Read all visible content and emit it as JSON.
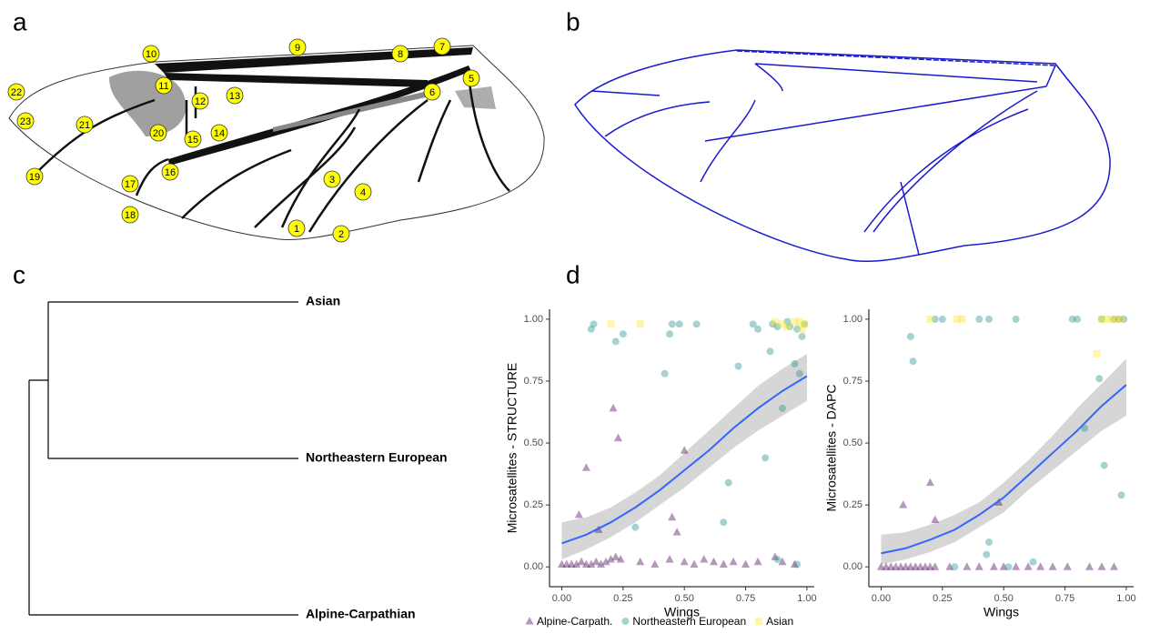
{
  "panel_labels": [
    "a",
    "b",
    "c",
    "d"
  ],
  "landmarks": [
    "1",
    "2",
    "3",
    "4",
    "5",
    "6",
    "7",
    "8",
    "9",
    "10",
    "11",
    "12",
    "13",
    "14",
    "15",
    "16",
    "17",
    "18",
    "19",
    "20",
    "21",
    "22",
    "23"
  ],
  "dendrogram": {
    "leaves": [
      "Asian",
      "Northeastern European",
      "Alpine-Carpathian"
    ]
  },
  "chart_data": [
    {
      "type": "scatter",
      "x_label": "Wings",
      "y_label": "Microsatellites - STRUCTURE",
      "xlim": [
        -0.05,
        1.03
      ],
      "ylim": [
        -0.08,
        1.04
      ],
      "xticks": [
        {
          "value": 0,
          "label": "0.00"
        },
        {
          "value": 0.25,
          "label": "0.25"
        },
        {
          "value": 0.5,
          "label": "0.50"
        },
        {
          "value": 0.75,
          "label": "0.75"
        },
        {
          "value": 1,
          "label": "1.00"
        }
      ],
      "yticks": [
        {
          "value": 0,
          "label": "0.00"
        },
        {
          "value": 0.25,
          "label": "0.25"
        },
        {
          "value": 0.5,
          "label": "0.50"
        },
        {
          "value": 0.75,
          "label": "0.75"
        },
        {
          "value": 1,
          "label": "1.00"
        }
      ],
      "series": [
        {
          "name": "Alpine-Carpath.",
          "color": "#440154",
          "marker": "triangle",
          "x": [
            0,
            0.02,
            0.04,
            0.06,
            0.08,
            0.1,
            0.12,
            0.14,
            0.16,
            0.18,
            0.2,
            0.22,
            0.24,
            0.07,
            0.1,
            0.15,
            0.21,
            0.23,
            0.5,
            0.45,
            0.47,
            0.32,
            0.38,
            0.44,
            0.5,
            0.54,
            0.58,
            0.62,
            0.66,
            0.7,
            0.75,
            0.8,
            0.87,
            0.9,
            0.95
          ],
          "values": [
            0.01,
            0.01,
            0.01,
            0.01,
            0.02,
            0.01,
            0.01,
            0.02,
            0.01,
            0.02,
            0.03,
            0.04,
            0.03,
            0.21,
            0.4,
            0.15,
            0.64,
            0.52,
            0.47,
            0.2,
            0.14,
            0.02,
            0.01,
            0.03,
            0.02,
            0.01,
            0.03,
            0.02,
            0.01,
            0.02,
            0.01,
            0.02,
            0.04,
            0.02,
            0.01
          ]
        },
        {
          "name": "Northeastern European",
          "color": "#21908c",
          "marker": "circle",
          "x": [
            0.12,
            0.13,
            0.22,
            0.25,
            0.3,
            0.42,
            0.44,
            0.45,
            0.48,
            0.55,
            0.66,
            0.68,
            0.72,
            0.78,
            0.8,
            0.83,
            0.85,
            0.86,
            0.88,
            0.9,
            0.92,
            0.93,
            0.95,
            0.96,
            0.97,
            0.98,
            0.99,
            0.88,
            0.96
          ],
          "values": [
            0.96,
            0.98,
            0.91,
            0.94,
            0.16,
            0.78,
            0.94,
            0.98,
            0.98,
            0.98,
            0.18,
            0.34,
            0.81,
            0.98,
            0.96,
            0.44,
            0.87,
            0.98,
            0.97,
            0.64,
            0.99,
            0.97,
            0.82,
            0.96,
            0.78,
            0.93,
            0.98,
            0.03,
            0.01
          ]
        },
        {
          "name": "Asian",
          "color": "#fde725",
          "marker": "square",
          "x": [
            0.2,
            0.32,
            0.87,
            0.9,
            0.92,
            0.95,
            0.97,
            0.99,
            0.98
          ],
          "values": [
            0.98,
            0.98,
            0.99,
            0.98,
            0.97,
            0.99,
            0.99,
            0.98,
            0.96
          ]
        }
      ],
      "fit": {
        "color": "#3366ff",
        "band_color": "#999999",
        "x": [
          0,
          0.1,
          0.2,
          0.3,
          0.4,
          0.5,
          0.6,
          0.7,
          0.8,
          0.9,
          1
        ],
        "values": [
          0.095,
          0.13,
          0.18,
          0.24,
          0.31,
          0.39,
          0.47,
          0.56,
          0.64,
          0.71,
          0.77
        ],
        "lower": [
          0.03,
          0.07,
          0.12,
          0.18,
          0.25,
          0.32,
          0.4,
          0.48,
          0.55,
          0.61,
          0.67
        ],
        "upper": [
          0.18,
          0.2,
          0.24,
          0.3,
          0.37,
          0.46,
          0.55,
          0.64,
          0.73,
          0.8,
          0.86
        ]
      }
    },
    {
      "type": "scatter",
      "x_label": "Wings",
      "y_label": "Microsatellites - DAPC",
      "xlim": [
        -0.05,
        1.03
      ],
      "ylim": [
        -0.08,
        1.04
      ],
      "xticks": [
        {
          "value": 0,
          "label": "0.00"
        },
        {
          "value": 0.25,
          "label": "0.25"
        },
        {
          "value": 0.5,
          "label": "0.50"
        },
        {
          "value": 0.75,
          "label": "0.75"
        },
        {
          "value": 1,
          "label": "1.00"
        }
      ],
      "yticks": [
        {
          "value": 0,
          "label": "0.00"
        },
        {
          "value": 0.25,
          "label": "0.25"
        },
        {
          "value": 0.5,
          "label": "0.50"
        },
        {
          "value": 0.75,
          "label": "0.75"
        },
        {
          "value": 1,
          "label": "1.00"
        }
      ],
      "series": [
        {
          "color": "#440154",
          "marker": "triangle",
          "x": [
            0,
            0.02,
            0.04,
            0.06,
            0.08,
            0.1,
            0.12,
            0.14,
            0.16,
            0.18,
            0.2,
            0.22,
            0.09,
            0.2,
            0.22,
            0.48,
            0.28,
            0.35,
            0.4,
            0.46,
            0.5,
            0.55,
            0.6,
            0.65,
            0.7,
            0.76,
            0.85,
            0.9,
            0.95
          ],
          "values": [
            0,
            0,
            0,
            0,
            0,
            0,
            0,
            0,
            0,
            0,
            0,
            0,
            0.25,
            0.34,
            0.19,
            0.26,
            0,
            0,
            0,
            0,
            0,
            0,
            0,
            0,
            0,
            0,
            0,
            0,
            0
          ]
        },
        {
          "color": "#21908c",
          "marker": "circle",
          "x": [
            0.12,
            0.13,
            0.22,
            0.25,
            0.4,
            0.44,
            0.55,
            0.44,
            0.43,
            0.78,
            0.8,
            0.83,
            0.89,
            0.91,
            0.95,
            0.97,
            0.98,
            0.99,
            0.9,
            0.3,
            0.62,
            0.52
          ],
          "values": [
            0.93,
            0.83,
            1,
            1,
            1,
            1,
            1,
            0.1,
            0.05,
            1,
            1,
            0.56,
            0.76,
            0.41,
            1,
            1,
            0.29,
            1,
            1,
            0,
            0.02,
            0
          ]
        },
        {
          "color": "#fde725",
          "marker": "square",
          "x": [
            0.2,
            0.31,
            0.33,
            0.88,
            0.9,
            0.92,
            0.94,
            0.96,
            0.98
          ],
          "values": [
            1,
            1,
            1,
            0.86,
            1,
            1,
            1,
            1,
            1
          ]
        }
      ],
      "fit": {
        "color": "#3366ff",
        "band_color": "#999999",
        "x": [
          0,
          0.1,
          0.2,
          0.3,
          0.4,
          0.5,
          0.6,
          0.7,
          0.8,
          0.9,
          1
        ],
        "values": [
          0.055,
          0.075,
          0.11,
          0.15,
          0.21,
          0.28,
          0.37,
          0.46,
          0.55,
          0.65,
          0.735
        ],
        "lower": [
          0.01,
          0.03,
          0.06,
          0.1,
          0.16,
          0.22,
          0.31,
          0.39,
          0.47,
          0.55,
          0.61
        ],
        "upper": [
          0.13,
          0.14,
          0.17,
          0.21,
          0.26,
          0.34,
          0.43,
          0.53,
          0.64,
          0.74,
          0.84
        ]
      }
    }
  ]
}
